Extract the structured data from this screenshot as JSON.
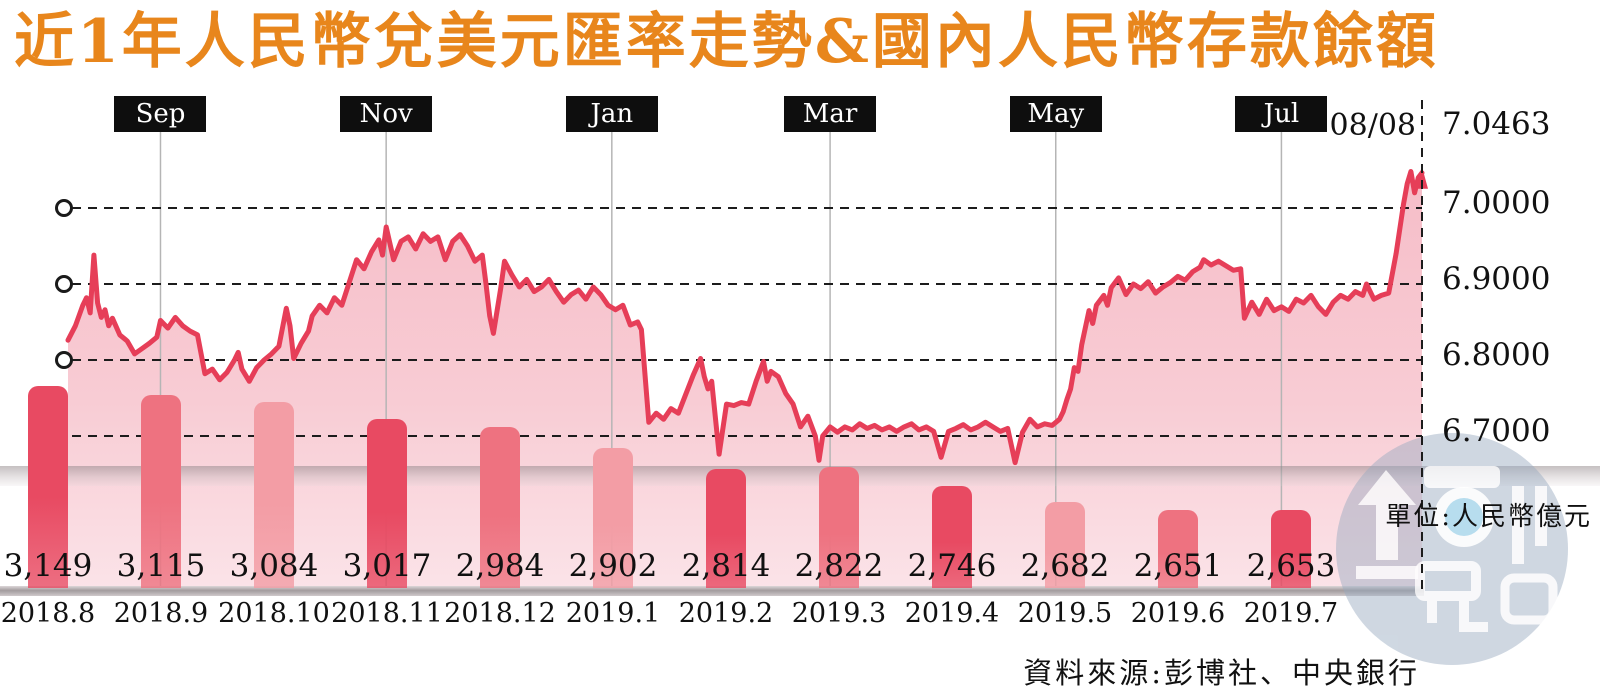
{
  "title": "近1年人民幣兌美元匯率走勢&國內人民幣存款餘額",
  "unit_note": "單位:人民幣億元",
  "source_note": "資料來源:彭博社、中央銀行",
  "colors": {
    "title_orange": "#E8861C",
    "line_red": "#E63E58",
    "area_pink_top": "#f6bdc8",
    "area_pink_bottom": "#fbe3e8",
    "bar_strong": "#E84A62",
    "bar_medium": "#EE7280",
    "bar_light": "#F39DA5",
    "month_box_bg": "#0e0e0e",
    "watermark_blue": "#97aac0"
  },
  "chart_data": [
    {
      "type": "line",
      "name": "人民幣兌美元匯率走勢",
      "end_marker": {
        "label": "08/08",
        "day": 366
      },
      "month_markers": [
        {
          "label": "Sep",
          "day": 25
        },
        {
          "label": "Nov",
          "day": 86
        },
        {
          "label": "Jan",
          "day": 147
        },
        {
          "label": "Mar",
          "day": 206
        },
        {
          "label": "May",
          "day": 267
        },
        {
          "label": "Jul",
          "day": 328
        }
      ],
      "y_axis": {
        "labels": [
          {
            "text": "7.0463",
            "value": 7.0463,
            "gridline": false,
            "left_marker": false
          },
          {
            "text": "7.0000",
            "value": 7.0,
            "gridline": true,
            "left_marker": true
          },
          {
            "text": "6.9000",
            "value": 6.9,
            "gridline": true,
            "left_marker": true
          },
          {
            "text": "6.8000",
            "value": 6.8,
            "gridline": true,
            "left_marker": true
          },
          {
            "text": "6.7000",
            "value": 6.7,
            "gridline": true,
            "left_marker": false
          }
        ]
      },
      "points": [
        [
          0,
          6.826
        ],
        [
          2,
          6.845
        ],
        [
          4,
          6.872
        ],
        [
          5,
          6.882
        ],
        [
          6,
          6.862
        ],
        [
          7,
          6.938
        ],
        [
          8,
          6.875
        ],
        [
          9,
          6.856
        ],
        [
          10,
          6.866
        ],
        [
          11,
          6.845
        ],
        [
          12,
          6.855
        ],
        [
          14,
          6.833
        ],
        [
          16,
          6.825
        ],
        [
          18,
          6.808
        ],
        [
          20,
          6.815
        ],
        [
          22,
          6.822
        ],
        [
          24,
          6.83
        ],
        [
          25,
          6.852
        ],
        [
          27,
          6.842
        ],
        [
          29,
          6.856
        ],
        [
          31,
          6.845
        ],
        [
          33,
          6.838
        ],
        [
          35,
          6.833
        ],
        [
          37,
          6.782
        ],
        [
          39,
          6.788
        ],
        [
          41,
          6.774
        ],
        [
          43,
          6.784
        ],
        [
          45,
          6.8
        ],
        [
          46,
          6.81
        ],
        [
          47,
          6.788
        ],
        [
          49,
          6.772
        ],
        [
          51,
          6.79
        ],
        [
          53,
          6.8
        ],
        [
          55,
          6.808
        ],
        [
          57,
          6.818
        ],
        [
          59,
          6.868
        ],
        [
          60,
          6.845
        ],
        [
          61,
          6.802
        ],
        [
          63,
          6.822
        ],
        [
          65,
          6.838
        ],
        [
          66,
          6.858
        ],
        [
          68,
          6.872
        ],
        [
          70,
          6.862
        ],
        [
          72,
          6.882
        ],
        [
          74,
          6.872
        ],
        [
          76,
          6.902
        ],
        [
          78,
          6.932
        ],
        [
          80,
          6.92
        ],
        [
          82,
          6.942
        ],
        [
          84,
          6.958
        ],
        [
          85,
          6.938
        ],
        [
          86,
          6.975
        ],
        [
          88,
          6.932
        ],
        [
          90,
          6.956
        ],
        [
          92,
          6.962
        ],
        [
          94,
          6.946
        ],
        [
          96,
          6.966
        ],
        [
          98,
          6.956
        ],
        [
          100,
          6.962
        ],
        [
          102,
          6.932
        ],
        [
          104,
          6.956
        ],
        [
          106,
          6.965
        ],
        [
          108,
          6.95
        ],
        [
          110,
          6.93
        ],
        [
          112,
          6.938
        ],
        [
          113,
          6.9
        ],
        [
          114,
          6.858
        ],
        [
          115,
          6.835
        ],
        [
          117,
          6.895
        ],
        [
          118,
          6.93
        ],
        [
          120,
          6.912
        ],
        [
          122,
          6.896
        ],
        [
          124,
          6.906
        ],
        [
          126,
          6.89
        ],
        [
          128,
          6.896
        ],
        [
          130,
          6.906
        ],
        [
          132,
          6.89
        ],
        [
          134,
          6.876
        ],
        [
          136,
          6.886
        ],
        [
          138,
          6.892
        ],
        [
          140,
          6.88
        ],
        [
          142,
          6.896
        ],
        [
          144,
          6.886
        ],
        [
          146,
          6.872
        ],
        [
          148,
          6.866
        ],
        [
          150,
          6.872
        ],
        [
          152,
          6.846
        ],
        [
          154,
          6.85
        ],
        [
          155,
          6.84
        ],
        [
          157,
          6.718
        ],
        [
          159,
          6.73
        ],
        [
          161,
          6.722
        ],
        [
          163,
          6.736
        ],
        [
          165,
          6.73
        ],
        [
          167,
          6.755
        ],
        [
          169,
          6.78
        ],
        [
          171,
          6.802
        ],
        [
          172,
          6.778
        ],
        [
          173,
          6.762
        ],
        [
          174,
          6.772
        ],
        [
          176,
          6.676
        ],
        [
          178,
          6.742
        ],
        [
          180,
          6.74
        ],
        [
          182,
          6.744
        ],
        [
          184,
          6.742
        ],
        [
          186,
          6.772
        ],
        [
          188,
          6.798
        ],
        [
          189,
          6.772
        ],
        [
          190,
          6.785
        ],
        [
          192,
          6.778
        ],
        [
          194,
          6.756
        ],
        [
          196,
          6.742
        ],
        [
          198,
          6.712
        ],
        [
          200,
          6.726
        ],
        [
          202,
          6.7
        ],
        [
          203,
          6.668
        ],
        [
          204,
          6.7
        ],
        [
          206,
          6.712
        ],
        [
          208,
          6.705
        ],
        [
          210,
          6.712
        ],
        [
          212,
          6.708
        ],
        [
          214,
          6.716
        ],
        [
          216,
          6.71
        ],
        [
          218,
          6.714
        ],
        [
          220,
          6.708
        ],
        [
          222,
          6.712
        ],
        [
          224,
          6.706
        ],
        [
          226,
          6.712
        ],
        [
          228,
          6.716
        ],
        [
          230,
          6.708
        ],
        [
          232,
          6.712
        ],
        [
          234,
          6.706
        ],
        [
          236,
          6.672
        ],
        [
          238,
          6.706
        ],
        [
          240,
          6.71
        ],
        [
          242,
          6.715
        ],
        [
          244,
          6.708
        ],
        [
          246,
          6.712
        ],
        [
          248,
          6.718
        ],
        [
          250,
          6.712
        ],
        [
          252,
          6.706
        ],
        [
          254,
          6.71
        ],
        [
          256,
          6.665
        ],
        [
          258,
          6.705
        ],
        [
          260,
          6.722
        ],
        [
          262,
          6.712
        ],
        [
          264,
          6.716
        ],
        [
          266,
          6.714
        ],
        [
          268,
          6.722
        ],
        [
          269,
          6.732
        ],
        [
          270,
          6.748
        ],
        [
          271,
          6.762
        ],
        [
          272,
          6.79
        ],
        [
          273,
          6.785
        ],
        [
          274,
          6.82
        ],
        [
          276,
          6.865
        ],
        [
          277,
          6.848
        ],
        [
          278,
          6.872
        ],
        [
          280,
          6.885
        ],
        [
          281,
          6.872
        ],
        [
          282,
          6.895
        ],
        [
          284,
          6.908
        ],
        [
          286,
          6.886
        ],
        [
          288,
          6.9
        ],
        [
          290,
          6.894
        ],
        [
          292,
          6.903
        ],
        [
          294,
          6.888
        ],
        [
          296,
          6.896
        ],
        [
          298,
          6.902
        ],
        [
          300,
          6.91
        ],
        [
          302,
          6.905
        ],
        [
          304,
          6.916
        ],
        [
          306,
          6.922
        ],
        [
          307,
          6.932
        ],
        [
          309,
          6.925
        ],
        [
          311,
          6.93
        ],
        [
          313,
          6.924
        ],
        [
          315,
          6.918
        ],
        [
          317,
          6.92
        ],
        [
          318,
          6.855
        ],
        [
          320,
          6.876
        ],
        [
          322,
          6.86
        ],
        [
          324,
          6.88
        ],
        [
          326,
          6.865
        ],
        [
          328,
          6.87
        ],
        [
          330,
          6.864
        ],
        [
          332,
          6.88
        ],
        [
          334,
          6.875
        ],
        [
          336,
          6.885
        ],
        [
          338,
          6.87
        ],
        [
          340,
          6.86
        ],
        [
          342,
          6.876
        ],
        [
          344,
          6.885
        ],
        [
          346,
          6.88
        ],
        [
          348,
          6.89
        ],
        [
          350,
          6.885
        ],
        [
          351,
          6.9
        ],
        [
          353,
          6.88
        ],
        [
          355,
          6.885
        ],
        [
          357,
          6.888
        ],
        [
          359,
          6.94
        ],
        [
          361,
          7.005
        ],
        [
          362,
          7.032
        ],
        [
          363,
          7.048
        ],
        [
          364,
          7.02
        ],
        [
          365,
          7.04
        ],
        [
          366,
          7.0463
        ]
      ]
    },
    {
      "type": "bar",
      "name": "國內人民幣存款餘額",
      "unit": "人民幣億元",
      "categories": [
        "2018.8",
        "2018.9",
        "2018.10",
        "2018.11",
        "2018.12",
        "2019.1",
        "2019.2",
        "2019.3",
        "2019.4",
        "2019.5",
        "2019.6",
        "2019.7"
      ],
      "values": [
        3149,
        3115,
        3084,
        3017,
        2984,
        2902,
        2814,
        2822,
        2746,
        2682,
        2651,
        2653
      ],
      "value_labels": [
        "3,149",
        "3,115",
        "3,084",
        "3,017",
        "2,984",
        "2,902",
        "2,814",
        "2,822",
        "2,746",
        "2,682",
        "2,651",
        "2,653"
      ],
      "bar_colors": [
        "#E84A62",
        "#EE7280",
        "#F39DA5",
        "#E84A62",
        "#EE7280",
        "#F39DA5",
        "#E84A62",
        "#EE7280",
        "#E84A62",
        "#F39DA5",
        "#EE7280",
        "#E84A62"
      ]
    }
  ]
}
